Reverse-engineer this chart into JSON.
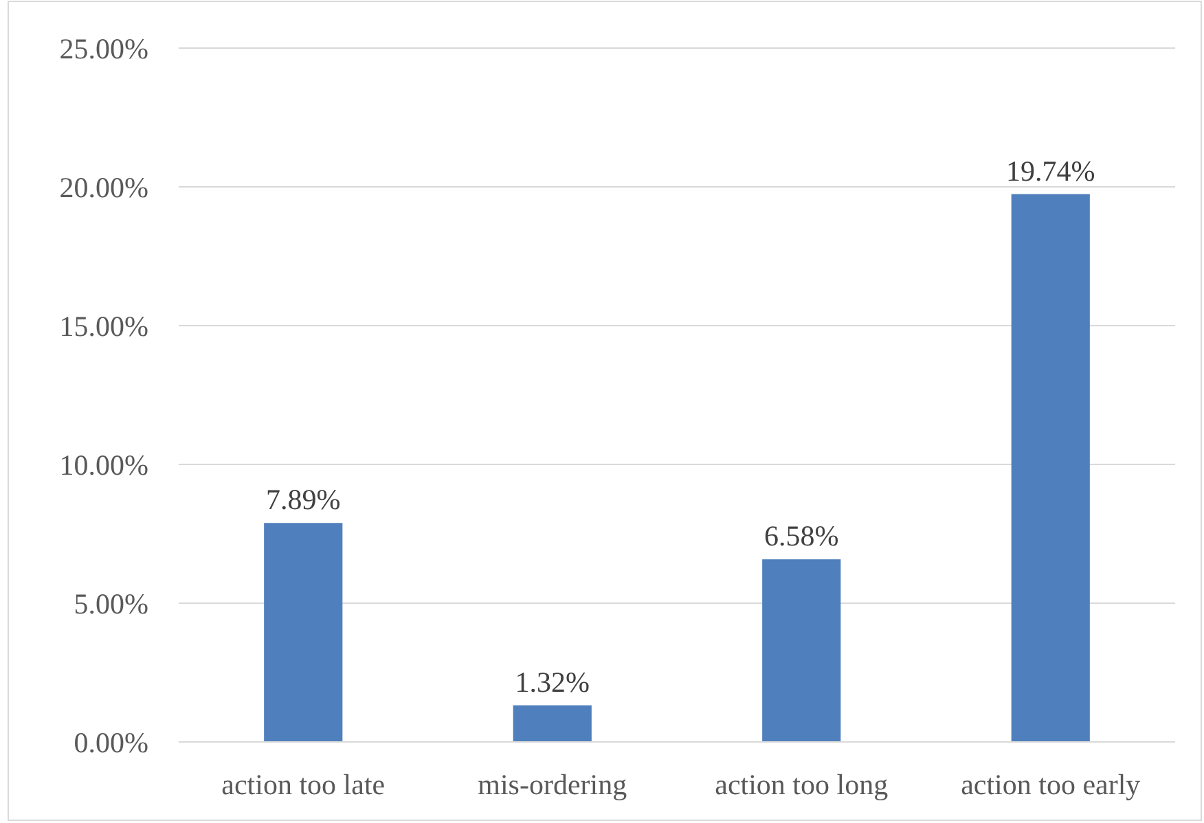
{
  "chart_data": {
    "type": "bar",
    "categories": [
      "action too late",
      "mis-ordering",
      "action too long",
      "action too early"
    ],
    "values": [
      7.89,
      1.32,
      6.58,
      19.74
    ],
    "value_labels": [
      "7.89%",
      "1.32%",
      "6.58%",
      "19.74%"
    ],
    "color": "#4f7fbc",
    "ylim": [
      0,
      25
    ],
    "yticks": [
      {
        "value": 0,
        "label": "0.00%"
      },
      {
        "value": 5,
        "label": "5.00%"
      },
      {
        "value": 10,
        "label": "10.00%"
      },
      {
        "value": 15,
        "label": "15.00%"
      },
      {
        "value": 20,
        "label": "20.00%"
      },
      {
        "value": 25,
        "label": "25.00%"
      }
    ],
    "grid": "y"
  }
}
